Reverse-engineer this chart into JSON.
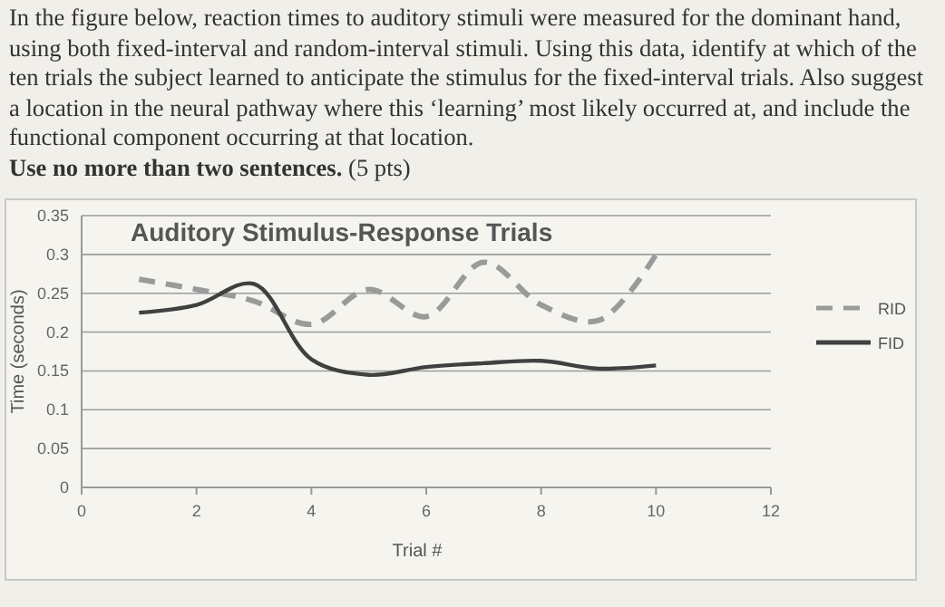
{
  "chart_data": {
    "type": "line",
    "title": "Auditory Stimulus-Response Trials",
    "xlabel": "Trial #",
    "ylabel": "Time (seconds)",
    "annotations": [
      "In the figure below, reaction times to auditory stimuli were measured for the dominant hand, using both fixed-interval and random-interval stimuli.  Using this data, identify at which of the ten trials the subject learned to anticipate the stimulus for the fixed-interval trials.  Also suggest a location in the neural pathway where this ‘learning’ most likely occurred at, and include the functional component occurring at that location.",
      "Use no more than two sentences.",
      "(5 pts)"
    ],
    "x": [
      1,
      2,
      3,
      4,
      5,
      6,
      7,
      8,
      9,
      10
    ],
    "series": [
      {
        "name": "RID",
        "color": "#9a9a9a",
        "line_style": "dashed",
        "values": [
          0.268,
          0.255,
          0.24,
          0.21,
          0.255,
          0.22,
          0.29,
          0.235,
          0.215,
          0.3
        ]
      },
      {
        "name": "FID",
        "color": "#404040",
        "line_style": "solid",
        "values": [
          0.225,
          0.235,
          0.262,
          0.165,
          0.145,
          0.155,
          0.16,
          0.163,
          0.153,
          0.157
        ]
      }
    ],
    "xlim": [
      0,
      12
    ],
    "xticks": [
      0,
      2,
      4,
      6,
      8,
      10,
      12
    ],
    "ylim": [
      0,
      0.35
    ],
    "yticks": [
      0,
      0.05,
      0.1,
      0.15,
      0.2,
      0.25,
      0.3,
      0.35
    ],
    "grid": "y",
    "legend": "right",
    "marker": "none"
  }
}
